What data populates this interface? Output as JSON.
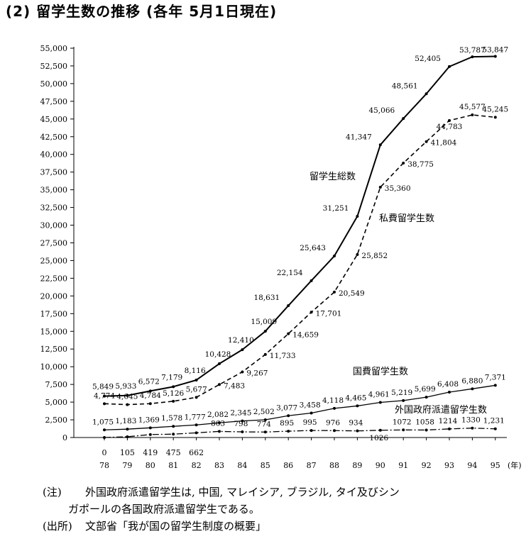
{
  "title": "(2) 留学生数の推移 (各年 5月1日現在)",
  "chart_data": {
    "type": "line",
    "ylim": [
      0,
      55000
    ],
    "yticks": [
      "55,000",
      "52,500",
      "50,000",
      "47,500",
      "45,000",
      "42,500",
      "40,000",
      "37,500",
      "35,000",
      "32,500",
      "30,000",
      "27,500",
      "25,000",
      "22,500",
      "20,000",
      "17,500",
      "15,000",
      "12,500",
      "10,000",
      "7,500",
      "5,000",
      "2,500",
      "0"
    ],
    "x_years": [
      "78",
      "79",
      "80",
      "81",
      "82",
      "83",
      "84",
      "85",
      "86",
      "87",
      "88",
      "89",
      "90",
      "91",
      "92",
      "93",
      "94",
      "95"
    ],
    "x_unit": "(年)",
    "x_top_values": [
      "0",
      "105",
      "419",
      "475",
      "662"
    ],
    "series": [
      {
        "name": "留学生総数",
        "style": "solid",
        "values": [
          5849,
          5933,
          6572,
          7179,
          8116,
          10428,
          12410,
          15009,
          18631,
          22154,
          25643,
          31251,
          41347,
          45066,
          48561,
          52405,
          53787,
          53847
        ],
        "labels": [
          "5,849",
          "5,933",
          "6,572",
          "7,179",
          "8,116",
          "10,428",
          "12,410",
          "15,009",
          "18,631",
          "22,154",
          "25,643",
          "31,251",
          "41,347",
          "45,066",
          "48,561",
          "52,405",
          "53,787",
          "53,847"
        ]
      },
      {
        "name": "私費留学生数",
        "style": "dashed",
        "values": [
          4774,
          4645,
          4784,
          5126,
          5677,
          7483,
          9267,
          11733,
          14659,
          17701,
          20549,
          25852,
          35360,
          38775,
          41804,
          44783,
          45577,
          45245
        ],
        "labels": [
          "4,774",
          "4,645",
          "4,784",
          "5,126",
          "5,677",
          "7,483",
          "9,267",
          "11,733",
          "14,659",
          "17,701",
          "20,549",
          "25,852",
          "35,360",
          "38,775",
          "41,804",
          "44,783",
          "45,577",
          "45,245"
        ]
      },
      {
        "name": "国費留学生数",
        "style": "solid-thin",
        "values": [
          1075,
          1183,
          1369,
          1578,
          1777,
          2082,
          2345,
          2502,
          3077,
          3458,
          4118,
          4465,
          4961,
          5219,
          5699,
          6408,
          6880,
          7371
        ],
        "labels": [
          "1,075",
          "1,183",
          "1,369",
          "1,578",
          "1,777",
          "2,082",
          "2,345",
          "2,502",
          "3,077",
          "3,458",
          "4,118",
          "4,465",
          "4,961",
          "5,219",
          "5,699",
          "6,408",
          "6,880",
          "7,371"
        ]
      },
      {
        "name": "外国政府派遣留学生数",
        "style": "dashdot",
        "values": [
          0,
          105,
          419,
          475,
          662,
          863,
          798,
          774,
          895,
          995,
          976,
          934,
          1026,
          1072,
          1058,
          1214,
          1330,
          1231
        ],
        "labels": [
          "",
          "",
          "",
          "",
          "",
          "863",
          "798",
          "774",
          "895",
          "995",
          "976",
          "934",
          "1026",
          "1072",
          "1058",
          "1214",
          "1330",
          "1,231"
        ]
      }
    ]
  },
  "notes": {
    "note_tag": "(注)",
    "note_line1": "外国政府派遣留学生は, 中国, マレイシア, ブラジル, タイ及びシン",
    "note_line2": "ガポールの各国政府派遣留学生である。",
    "source_tag": "(出所)",
    "source_text": "文部省「我が国の留学生制度の概要」"
  }
}
